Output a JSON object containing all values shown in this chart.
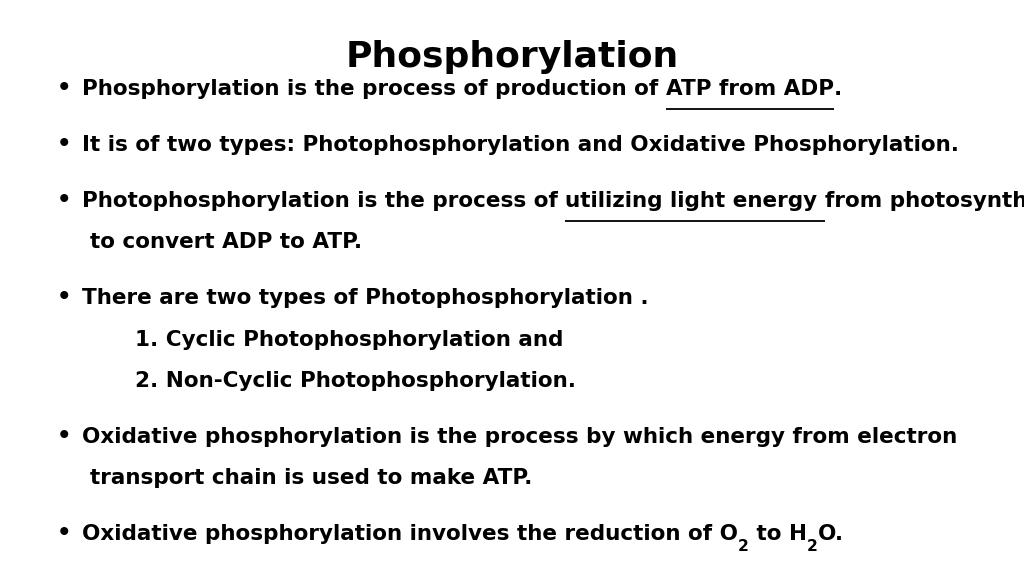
{
  "title": "Phosphorylation",
  "background_color": "#ffffff",
  "text_color": "#000000",
  "title_fontsize": 26,
  "bullet_fontsize": 15.5,
  "bullets": [
    {
      "lines": [
        {
          "indent": false,
          "bullet": true,
          "segments": [
            {
              "text": "Phosphorylation is the process of production of ",
              "bold": true,
              "underline": false,
              "sub": false
            },
            {
              "text": "ATP from ADP",
              "bold": true,
              "underline": true,
              "sub": false
            },
            {
              "text": ".",
              "bold": true,
              "underline": false,
              "sub": false
            }
          ]
        }
      ]
    },
    {
      "lines": [
        {
          "indent": false,
          "bullet": true,
          "segments": [
            {
              "text": "It is of two types: Photophosphorylation and Oxidative Phosphorylation.",
              "bold": true,
              "underline": false,
              "sub": false
            }
          ]
        }
      ]
    },
    {
      "lines": [
        {
          "indent": false,
          "bullet": true,
          "segments": [
            {
              "text": "Photophosphorylation is the process of ",
              "bold": true,
              "underline": false,
              "sub": false
            },
            {
              "text": "utilizing light energy ",
              "bold": true,
              "underline": true,
              "sub": false
            },
            {
              "text": "from photosynthesis",
              "bold": true,
              "underline": false,
              "sub": false
            }
          ]
        },
        {
          "indent": true,
          "bullet": false,
          "segments": [
            {
              "text": "to convert ADP to ATP.",
              "bold": true,
              "underline": false,
              "sub": false
            }
          ]
        }
      ]
    },
    {
      "lines": [
        {
          "indent": false,
          "bullet": true,
          "segments": [
            {
              "text": "There are two types of Photophosphorylation .",
              "bold": true,
              "underline": false,
              "sub": false
            }
          ]
        },
        {
          "indent": true,
          "bullet": false,
          "segments": [
            {
              "text": "      1. Cyclic Photophosphorylation and",
              "bold": true,
              "underline": false,
              "sub": false
            }
          ]
        },
        {
          "indent": true,
          "bullet": false,
          "segments": [
            {
              "text": "      2. Non-Cyclic Photophosphorylation.",
              "bold": true,
              "underline": false,
              "sub": false
            }
          ]
        }
      ]
    },
    {
      "lines": [
        {
          "indent": false,
          "bullet": true,
          "segments": [
            {
              "text": "Oxidative phosphorylation is the process by which energy from electron",
              "bold": true,
              "underline": false,
              "sub": false
            }
          ]
        },
        {
          "indent": true,
          "bullet": false,
          "segments": [
            {
              "text": "transport chain is used to make ATP.",
              "bold": true,
              "underline": false,
              "sub": false
            }
          ]
        }
      ]
    },
    {
      "lines": [
        {
          "indent": false,
          "bullet": true,
          "segments": [
            {
              "text": "Oxidative phosphorylation involves the reduction of O",
              "bold": true,
              "underline": false,
              "sub": false
            },
            {
              "text": "2",
              "bold": true,
              "underline": false,
              "sub": true
            },
            {
              "text": " to H",
              "bold": true,
              "underline": false,
              "sub": false
            },
            {
              "text": "2",
              "bold": true,
              "underline": false,
              "sub": true
            },
            {
              "text": "O.",
              "bold": true,
              "underline": false,
              "sub": false
            }
          ]
        }
      ]
    }
  ]
}
